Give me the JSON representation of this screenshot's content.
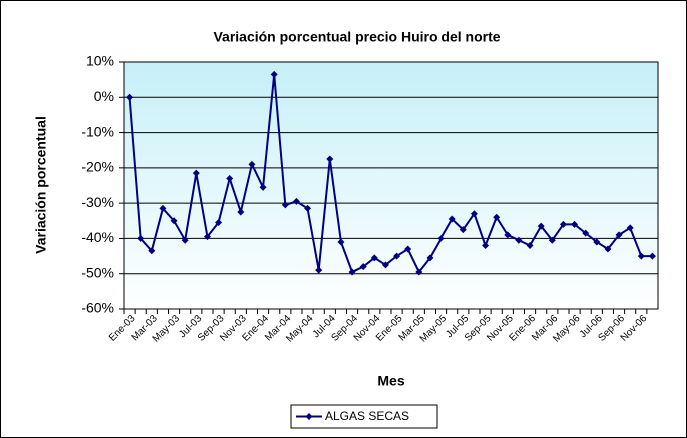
{
  "chart_data": {
    "type": "line",
    "title": "Variación porcentual precio Huiro del norte",
    "x_label": "Mes",
    "y_label": "Variación porcentual",
    "categories": [
      "Ene-03",
      null,
      "Mar-03",
      null,
      "May-03",
      null,
      "Jul-03",
      null,
      "Sep-03",
      null,
      "Nov-03",
      null,
      "Ene-04",
      null,
      "Mar-04",
      null,
      "May-04",
      null,
      "Jul-04",
      null,
      "Sep-04",
      null,
      "Nov-04",
      null,
      "Ene-05",
      null,
      "Mar-05",
      null,
      "May-05",
      null,
      "Jul-05",
      null,
      "Sep-05",
      null,
      "Nov-05",
      null,
      "Ene-06",
      null,
      "Mar-06",
      null,
      "May-06",
      null,
      "Jul-06",
      null,
      "Sep-06",
      null,
      "Nov-06",
      null
    ],
    "series": [
      {
        "name": "ALGAS SECAS",
        "color": "#000080",
        "values": [
          0,
          -40,
          -43.5,
          -31.5,
          -35,
          -40.5,
          -21.5,
          -39.5,
          -35.5,
          -23,
          -32.5,
          -19,
          -25.5,
          6.5,
          -30.5,
          -29.5,
          -31.5,
          -49,
          -17.5,
          -41,
          -49.5,
          -48,
          -45.5,
          -47.5,
          -45,
          -43,
          -49.5,
          -45.5,
          -40,
          -34.5,
          -37.5,
          -33,
          -42,
          -34,
          -39,
          -40.5,
          -42,
          -36.5,
          -40.5,
          -36,
          -36,
          -38.5,
          -41,
          -43,
          -39,
          -37,
          -45,
          -45
        ]
      }
    ],
    "ylim": [
      -60,
      10
    ],
    "yticks": [
      {
        "value": -60,
        "label": "-60%"
      },
      {
        "value": -50,
        "label": "-50%"
      },
      {
        "value": -40,
        "label": "-40%"
      },
      {
        "value": -30,
        "label": "-30%"
      },
      {
        "value": -20,
        "label": "-20%"
      },
      {
        "value": -10,
        "label": "-10%"
      },
      {
        "value": 0,
        "label": "0%"
      },
      {
        "value": 10,
        "label": "10%"
      }
    ],
    "grid": true,
    "legend": "bottom"
  }
}
